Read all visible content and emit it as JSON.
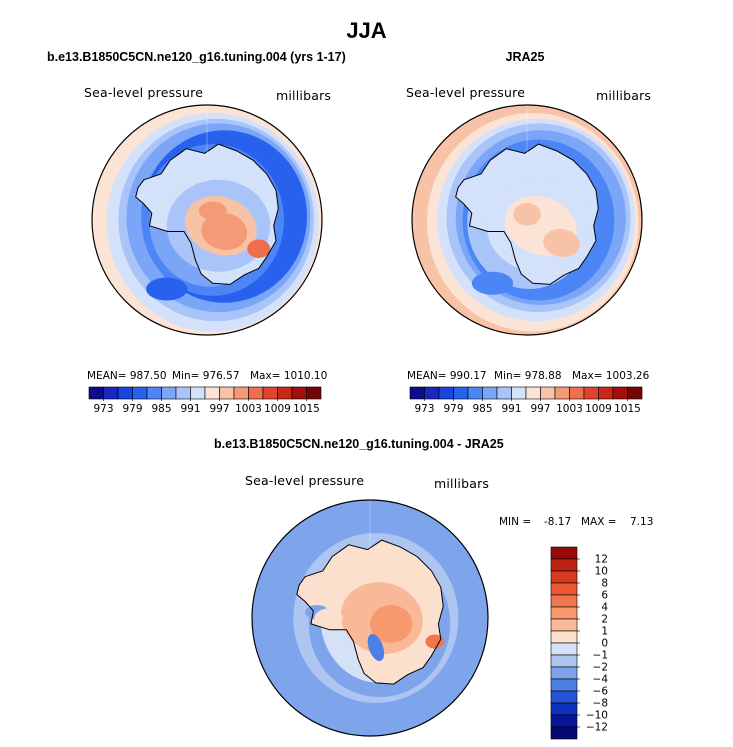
{
  "title": "JJA",
  "panels": [
    {
      "title": "b.e13.B1850C5CN.ne120_g16.tuning.004 (yrs 1-17)",
      "left_label": "Sea-level pressure",
      "right_label": "millibars",
      "stats": {
        "mean": "MEAN= 987.50",
        "min": "Min= 976.57",
        "max": "Max= 1010.10"
      }
    },
    {
      "title": "JRA25",
      "left_label": "Sea-level pressure",
      "right_label": "millibars",
      "stats": {
        "mean": "MEAN= 990.17",
        "min": "Min= 978.88",
        "max": "Max= 1003.26"
      }
    },
    {
      "title": "b.e13.B1850C5CN.ne120_g16.tuning.004 - JRA25",
      "left_label": "Sea-level pressure",
      "right_label": "millibars",
      "minmax": {
        "min_label": "MIN =",
        "min_value": "-8.17",
        "max_label": "MAX =",
        "max_value": "7.13"
      }
    }
  ],
  "chart_data": [
    {
      "type": "heatmap",
      "title": "b.e13.B1850C5CN.ne120_g16.tuning.004 (yrs 1-17)",
      "variable": "Sea-level pressure",
      "units": "millibars",
      "projection": "south polar stereographic",
      "mean": 987.5,
      "min": 976.57,
      "max": 1010.1,
      "colorbar_levels": [
        973,
        979,
        985,
        991,
        997,
        1003,
        1009,
        1015
      ],
      "colorbar_colors": [
        "#0b0c8c",
        "#1828bf",
        "#1b43e2",
        "#2861ee",
        "#4c85f5",
        "#7ba5f7",
        "#a8c4f8",
        "#d3e1fa",
        "#fbe3d6",
        "#f8c2a6",
        "#f49a77",
        "#ee6e4e",
        "#e24230",
        "#c92818",
        "#a30e0e",
        "#730606"
      ]
    },
    {
      "type": "heatmap",
      "title": "JRA25",
      "variable": "Sea-level pressure",
      "units": "millibars",
      "projection": "south polar stereographic",
      "mean": 990.17,
      "min": 978.88,
      "max": 1003.26,
      "colorbar_levels": [
        973,
        979,
        985,
        991,
        997,
        1003,
        1009,
        1015
      ],
      "colorbar_colors": [
        "#0b0c8c",
        "#1828bf",
        "#1b43e2",
        "#2861ee",
        "#4c85f5",
        "#7ba5f7",
        "#a8c4f8",
        "#d3e1fa",
        "#fbe3d6",
        "#f8c2a6",
        "#f49a77",
        "#ee6e4e",
        "#e24230",
        "#c92818",
        "#a30e0e",
        "#730606"
      ]
    },
    {
      "type": "heatmap",
      "title": "b.e13.B1850C5CN.ne120_g16.tuning.004 - JRA25",
      "variable": "Sea-level pressure difference",
      "units": "millibars",
      "projection": "south polar stereographic",
      "min": -8.17,
      "max": 7.13,
      "colorbar_levels": [
        "12",
        "10",
        "8",
        "6",
        "4",
        "2",
        "1",
        "0",
        "−1",
        "−2",
        "−4",
        "−6",
        "−8",
        "−10",
        "−12"
      ],
      "colorbar_colors": [
        "#960a0a",
        "#bd2315",
        "#db3a22",
        "#ec5733",
        "#f2764d",
        "#f7996d",
        "#f9b998",
        "#fbe0cd",
        "#d4e1f7",
        "#aec5f2",
        "#7ea4ec",
        "#4e7fe5",
        "#2354d6",
        "#0f2fbd",
        "#08149a",
        "#040870"
      ]
    }
  ]
}
